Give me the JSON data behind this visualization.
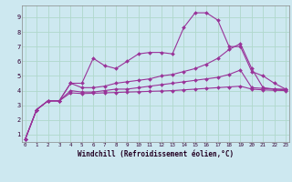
{
  "xlabel": "Windchill (Refroidissement éolien,°C)",
  "background_color": "#cde8f0",
  "grid_color": "#b0d8cc",
  "line_color": "#993399",
  "x_ticks": [
    0,
    1,
    2,
    3,
    4,
    5,
    6,
    7,
    8,
    9,
    10,
    11,
    12,
    13,
    14,
    15,
    16,
    17,
    18,
    19,
    20,
    21,
    22,
    23
  ],
  "y_ticks": [
    1,
    2,
    3,
    4,
    5,
    6,
    7,
    8,
    9
  ],
  "xlim": [
    -0.3,
    23.3
  ],
  "ylim": [
    0.5,
    9.8
  ],
  "series": [
    {
      "x": [
        0,
        1,
        2,
        3,
        4,
        5,
        6,
        7,
        8,
        9,
        10,
        11,
        12,
        13,
        14,
        15,
        16,
        17,
        18,
        19,
        20,
        21,
        22,
        23
      ],
      "y": [
        0.7,
        2.7,
        3.3,
        3.3,
        4.5,
        4.5,
        6.2,
        5.7,
        5.5,
        6.0,
        6.5,
        6.6,
        6.6,
        6.5,
        8.3,
        9.3,
        9.3,
        8.8,
        7.0,
        7.0,
        5.3,
        5.0,
        4.5,
        4.1
      ]
    },
    {
      "x": [
        0,
        1,
        2,
        3,
        4,
        5,
        6,
        7,
        8,
        9,
        10,
        11,
        12,
        13,
        14,
        15,
        16,
        17,
        18,
        19,
        20,
        21,
        22,
        23
      ],
      "y": [
        0.7,
        2.7,
        3.3,
        3.3,
        4.5,
        4.2,
        4.2,
        4.3,
        4.5,
        4.6,
        4.7,
        4.8,
        5.0,
        5.1,
        5.3,
        5.5,
        5.8,
        6.2,
        6.8,
        7.2,
        5.5,
        4.2,
        4.1,
        4.1
      ]
    },
    {
      "x": [
        0,
        1,
        2,
        3,
        4,
        5,
        6,
        7,
        8,
        9,
        10,
        11,
        12,
        13,
        14,
        15,
        16,
        17,
        18,
        19,
        20,
        21,
        22,
        23
      ],
      "y": [
        0.7,
        2.7,
        3.3,
        3.3,
        4.0,
        3.9,
        3.9,
        4.0,
        4.1,
        4.1,
        4.2,
        4.3,
        4.4,
        4.5,
        4.6,
        4.7,
        4.8,
        4.9,
        5.1,
        5.4,
        4.2,
        4.15,
        4.1,
        4.05
      ]
    },
    {
      "x": [
        0,
        1,
        2,
        3,
        4,
        5,
        6,
        7,
        8,
        9,
        10,
        11,
        12,
        13,
        14,
        15,
        16,
        17,
        18,
        19,
        20,
        21,
        22,
        23
      ],
      "y": [
        0.7,
        2.7,
        3.3,
        3.3,
        3.85,
        3.8,
        3.82,
        3.85,
        3.87,
        3.9,
        3.92,
        3.95,
        3.97,
        4.0,
        4.05,
        4.1,
        4.15,
        4.2,
        4.25,
        4.3,
        4.1,
        4.05,
        4.02,
        4.0
      ]
    }
  ]
}
